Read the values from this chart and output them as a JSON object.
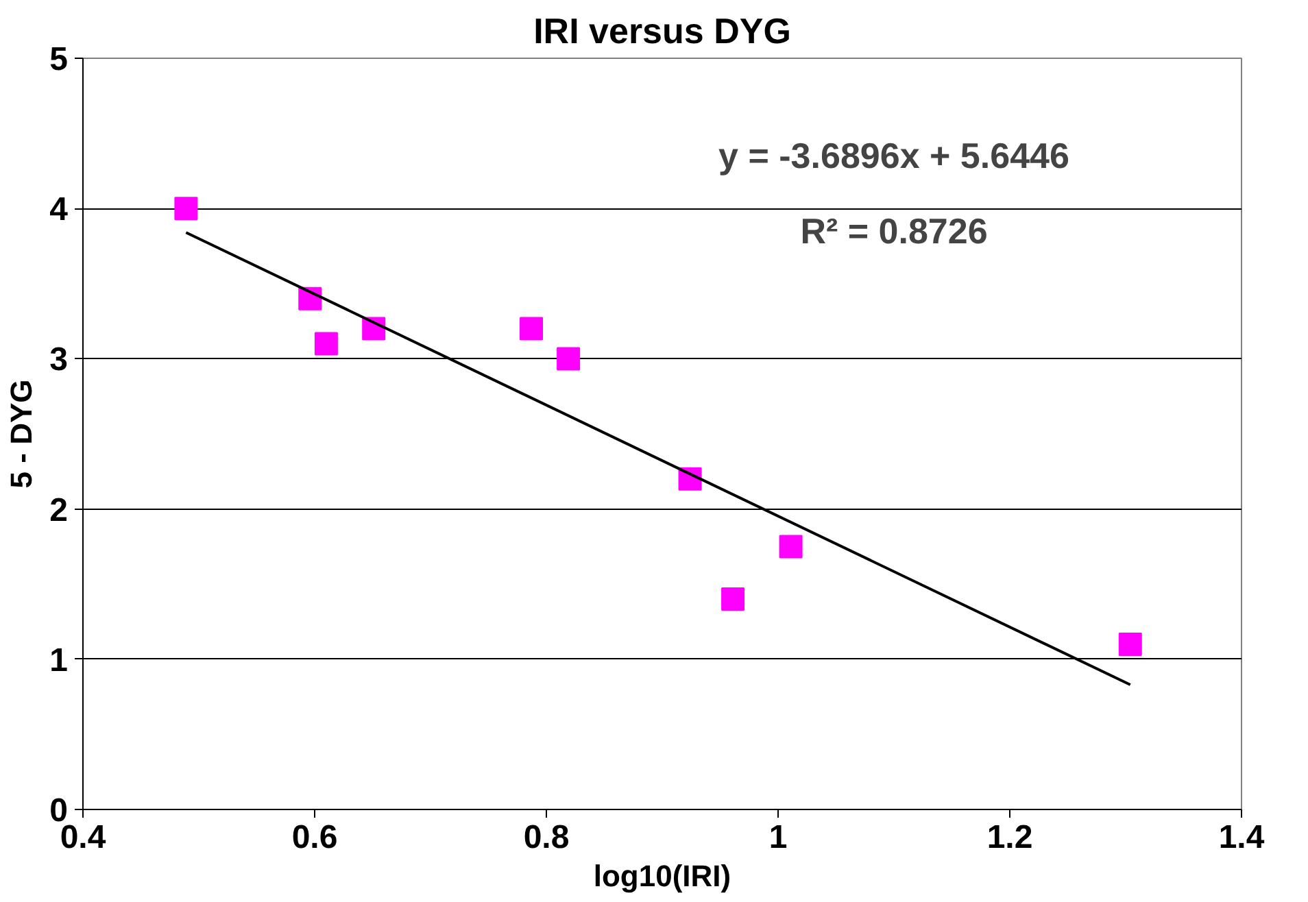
{
  "chart_data": {
    "type": "scatter",
    "title": "IRI versus DYG",
    "xlabel": "log10(IRI)",
    "ylabel": "5 - DYG",
    "xlim": [
      0.4,
      1.4
    ],
    "xticks": [
      0.4,
      0.6,
      0.8,
      1,
      1.2,
      1.4
    ],
    "ylim": [
      0,
      5
    ],
    "yticks": [
      0,
      1,
      2,
      3,
      4,
      5
    ],
    "grid": "y",
    "marker": "square",
    "series": [
      {
        "color": "#ff00ff",
        "x": [
          0.489,
          0.596,
          0.61,
          0.651,
          0.787,
          0.819,
          0.924,
          0.961,
          1.011,
          1.304
        ],
        "values": [
          4.0,
          3.4,
          3.1,
          3.2,
          3.2,
          3.0,
          2.2,
          1.4,
          1.75,
          1.1
        ]
      },
      {
        "type": "line",
        "marker": "none",
        "color": "#000000",
        "x": [
          0.489,
          1.304
        ],
        "values": [
          3.84,
          0.83
        ]
      }
    ],
    "annotations": [
      "y = -3.6896x + 5.6446",
      "R² = 0.8726"
    ]
  }
}
